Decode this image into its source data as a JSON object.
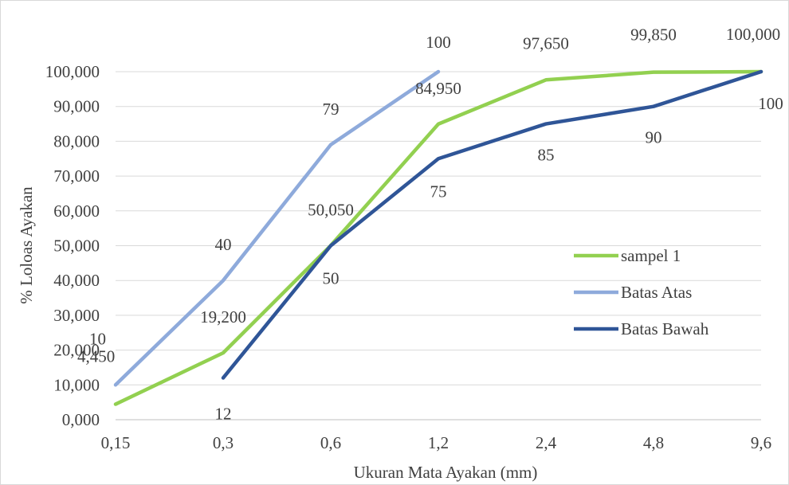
{
  "chart_data": {
    "type": "line",
    "title": "",
    "xlabel": "Ukuran Mata Ayakan (mm)",
    "ylabel": "% Loloas Ayakan",
    "categories": [
      "0,15",
      "0,3",
      "0,6",
      "1,2",
      "2,4",
      "4,8",
      "9,6"
    ],
    "ylim": [
      0,
      100
    ],
    "yticks": [
      "0,000",
      "10,000",
      "20,000",
      "30,000",
      "40,000",
      "50,000",
      "60,000",
      "70,000",
      "80,000",
      "90,000",
      "100,000"
    ],
    "grid": true,
    "legend_position": "right",
    "series": [
      {
        "name": "sampel 1",
        "color": "#92d050",
        "values": [
          4.45,
          19.2,
          50.05,
          84.95,
          97.65,
          99.85,
          100.0
        ],
        "labels": [
          "4,450",
          "19,200",
          "50,050",
          "84,950",
          "97,650",
          "99,850",
          "100,000"
        ]
      },
      {
        "name": "Batas Atas",
        "color": "#8eaadb",
        "values": [
          10,
          40,
          79,
          100,
          null,
          null,
          null
        ],
        "labels": [
          "10",
          "40",
          "79",
          "100",
          null,
          null,
          null
        ]
      },
      {
        "name": "Batas Bawah",
        "color": "#2f5597",
        "values": [
          null,
          12,
          50,
          75,
          85,
          90,
          100
        ],
        "labels": [
          null,
          "12",
          "50",
          "75",
          "85",
          "90",
          "100"
        ]
      }
    ]
  }
}
